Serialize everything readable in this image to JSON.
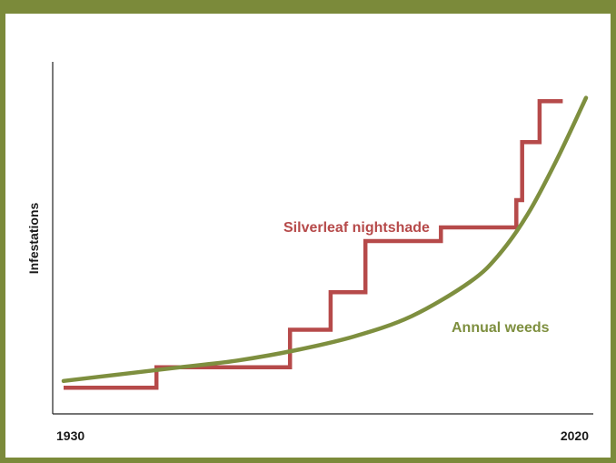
{
  "chart_data": {
    "type": "line",
    "ylabel": "Infestations",
    "xlabel": "",
    "x_tick_labels": [
      "1930",
      "2020"
    ],
    "xlim": [
      1930,
      2020
    ],
    "ylim": [
      0,
      100
    ],
    "grid": false,
    "legend": "inline labels",
    "colors": {
      "frame": "#7b8a3a",
      "axis": "#222222",
      "text": "#1a1a1a"
    },
    "series": [
      {
        "name": "Silverleaf nightshade",
        "color": "#b64a4a",
        "kind": "step",
        "x": [
          1930,
          1946,
          1946,
          1969,
          1969,
          1976,
          1976,
          1982,
          1982,
          1995,
          1995,
          2008,
          2008,
          2009,
          2009,
          2012,
          2012,
          2016
        ],
        "y": [
          5,
          5,
          11,
          11,
          22,
          22,
          33,
          33,
          48,
          48,
          52,
          52,
          60,
          60,
          77,
          77,
          89,
          89
        ]
      },
      {
        "name": "Annual weeds",
        "color": "#7e8f3f",
        "kind": "curve",
        "x": [
          1930,
          1940,
          1950,
          1960,
          1970,
          1980,
          1990,
          2000,
          2005,
          2010,
          2015,
          2020
        ],
        "y": [
          7,
          9,
          11,
          13,
          16,
          20,
          26,
          36,
          44,
          56,
          72,
          90
        ]
      }
    ]
  }
}
